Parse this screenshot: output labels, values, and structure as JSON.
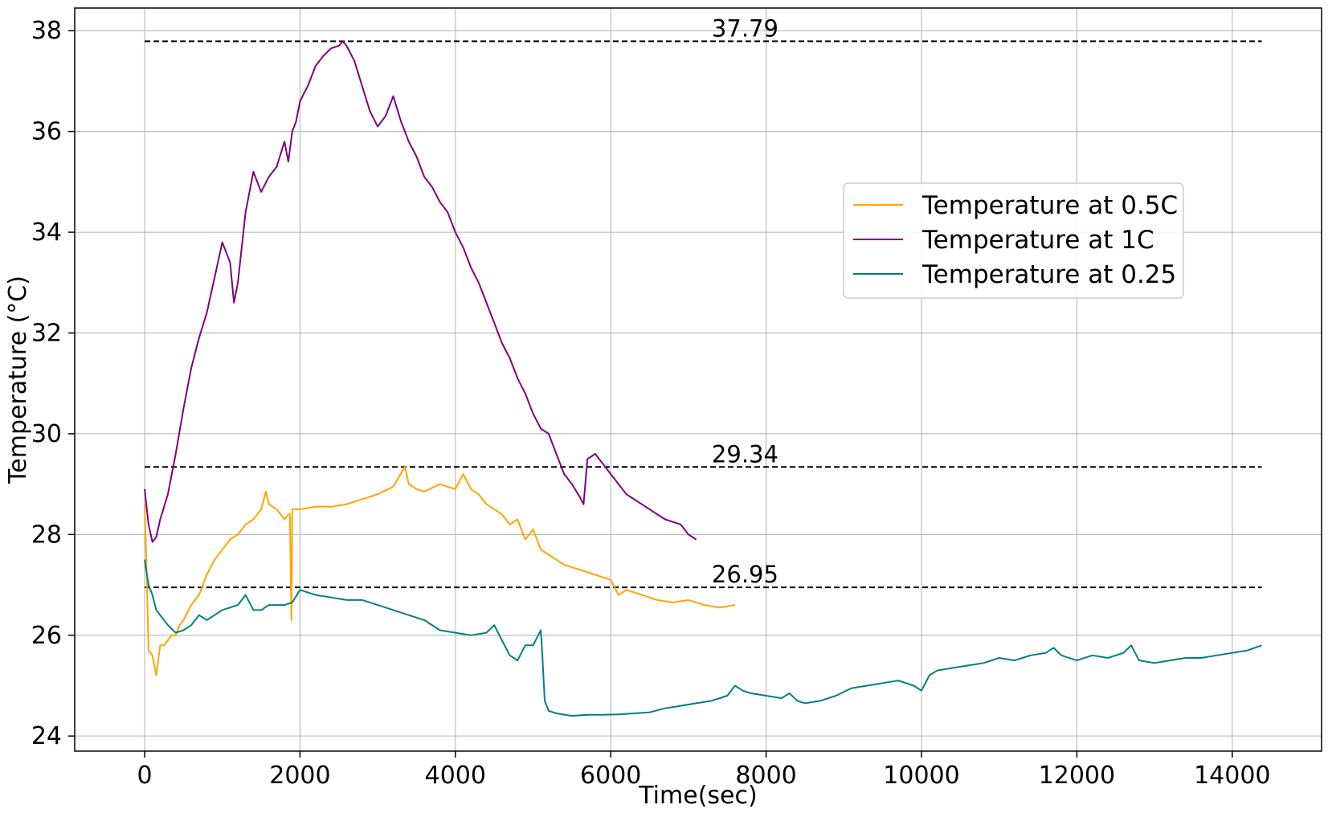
{
  "chart_data": {
    "type": "line",
    "xlabel": "Time(sec)",
    "ylabel": "Temperature (°C)",
    "xlim": [
      -900,
      15150
    ],
    "ylim": [
      23.7,
      38.45
    ],
    "xticks": [
      0,
      2000,
      4000,
      6000,
      8000,
      10000,
      12000,
      14000
    ],
    "yticks": [
      24,
      26,
      28,
      30,
      32,
      34,
      36,
      38
    ],
    "grid": true,
    "legend_position": "upper-right",
    "series": [
      {
        "name": "Temperature at 0.5C",
        "color": "#FFA500",
        "x": [
          0,
          20,
          50,
          100,
          150,
          200,
          250,
          300,
          350,
          400,
          450,
          500,
          600,
          700,
          800,
          900,
          1000,
          1100,
          1200,
          1300,
          1400,
          1500,
          1560,
          1600,
          1700,
          1800,
          1850,
          1870,
          1880,
          1890,
          1900,
          1950,
          2000,
          2200,
          2400,
          2600,
          2800,
          3000,
          3200,
          3350,
          3400,
          3500,
          3600,
          3800,
          4000,
          4100,
          4200,
          4300,
          4400,
          4500,
          4600,
          4700,
          4800,
          4900,
          5000,
          5100,
          5200,
          5400,
          5600,
          5800,
          6000,
          6100,
          6200,
          6400,
          6600,
          6800,
          7000,
          7200,
          7400,
          7600
        ],
        "values": [
          28.6,
          27.6,
          25.7,
          25.6,
          25.2,
          25.8,
          25.8,
          25.9,
          26.0,
          26.0,
          26.2,
          26.3,
          26.6,
          26.8,
          27.2,
          27.5,
          27.7,
          27.9,
          28.0,
          28.2,
          28.3,
          28.5,
          28.85,
          28.6,
          28.5,
          28.3,
          28.4,
          28.4,
          27.2,
          26.3,
          28.5,
          28.5,
          28.5,
          28.55,
          28.55,
          28.6,
          28.7,
          28.8,
          28.95,
          29.35,
          29.0,
          28.9,
          28.85,
          29.0,
          28.9,
          29.2,
          28.9,
          28.8,
          28.6,
          28.5,
          28.4,
          28.2,
          28.3,
          27.9,
          28.1,
          27.7,
          27.6,
          27.4,
          27.3,
          27.2,
          27.1,
          26.8,
          26.9,
          26.8,
          26.7,
          26.65,
          26.7,
          26.6,
          26.55,
          26.6
        ]
      },
      {
        "name": "Temperature at 1C",
        "color": "#800080",
        "x": [
          0,
          50,
          100,
          150,
          200,
          300,
          400,
          500,
          600,
          700,
          800,
          900,
          1000,
          1100,
          1150,
          1200,
          1250,
          1300,
          1400,
          1500,
          1600,
          1700,
          1800,
          1850,
          1900,
          1950,
          2000,
          2100,
          2200,
          2300,
          2400,
          2500,
          2550,
          2600,
          2700,
          2800,
          2900,
          3000,
          3100,
          3200,
          3300,
          3400,
          3500,
          3600,
          3700,
          3800,
          3900,
          4000,
          4100,
          4200,
          4300,
          4400,
          4500,
          4600,
          4700,
          4800,
          4900,
          5000,
          5100,
          5200,
          5300,
          5400,
          5500,
          5600,
          5650,
          5700,
          5800,
          5900,
          6000,
          6100,
          6200,
          6300,
          6400,
          6500,
          6600,
          6700,
          6800,
          6900,
          7000,
          7100
        ],
        "values": [
          28.9,
          28.2,
          27.85,
          27.95,
          28.3,
          28.8,
          29.6,
          30.5,
          31.3,
          31.9,
          32.4,
          33.1,
          33.8,
          33.4,
          32.6,
          33.0,
          33.7,
          34.4,
          35.2,
          34.8,
          35.1,
          35.3,
          35.8,
          35.4,
          36.0,
          36.2,
          36.6,
          36.9,
          37.3,
          37.5,
          37.65,
          37.7,
          37.79,
          37.7,
          37.4,
          36.9,
          36.4,
          36.1,
          36.3,
          36.7,
          36.2,
          35.8,
          35.5,
          35.1,
          34.9,
          34.6,
          34.4,
          34.0,
          33.7,
          33.3,
          33.0,
          32.6,
          32.2,
          31.8,
          31.5,
          31.1,
          30.8,
          30.4,
          30.1,
          30.0,
          29.6,
          29.2,
          29.0,
          28.75,
          28.6,
          29.5,
          29.6,
          29.4,
          29.2,
          29.0,
          28.8,
          28.7,
          28.6,
          28.5,
          28.4,
          28.3,
          28.25,
          28.2,
          28.0,
          27.9
        ]
      },
      {
        "name": "Temperature at 0.25",
        "color": "#008080",
        "x": [
          0,
          50,
          100,
          150,
          200,
          300,
          400,
          500,
          600,
          700,
          800,
          900,
          1000,
          1200,
          1300,
          1400,
          1500,
          1600,
          1800,
          1900,
          2000,
          2200,
          2400,
          2600,
          2800,
          3000,
          3200,
          3400,
          3600,
          3800,
          4000,
          4200,
          4400,
          4500,
          4600,
          4700,
          4800,
          4900,
          5000,
          5100,
          5120,
          5150,
          5200,
          5300,
          5500,
          5700,
          5900,
          6100,
          6300,
          6500,
          6700,
          6900,
          7100,
          7300,
          7500,
          7600,
          7700,
          7800,
          8000,
          8200,
          8300,
          8400,
          8500,
          8700,
          8900,
          9100,
          9300,
          9500,
          9700,
          9900,
          10000,
          10100,
          10200,
          10400,
          10600,
          10800,
          11000,
          11200,
          11400,
          11600,
          11700,
          11800,
          12000,
          12200,
          12400,
          12600,
          12700,
          12800,
          13000,
          13200,
          13400,
          13600,
          13800,
          14000,
          14200,
          14380
        ],
        "values": [
          27.5,
          27.0,
          26.8,
          26.5,
          26.4,
          26.2,
          26.05,
          26.1,
          26.2,
          26.4,
          26.3,
          26.4,
          26.5,
          26.6,
          26.8,
          26.5,
          26.5,
          26.6,
          26.6,
          26.65,
          26.9,
          26.8,
          26.75,
          26.7,
          26.7,
          26.6,
          26.5,
          26.4,
          26.3,
          26.1,
          26.05,
          26.0,
          26.05,
          26.2,
          25.9,
          25.6,
          25.5,
          25.8,
          25.8,
          26.1,
          25.6,
          24.7,
          24.5,
          24.45,
          24.4,
          24.42,
          24.42,
          24.43,
          24.45,
          24.47,
          24.55,
          24.6,
          24.65,
          24.7,
          24.8,
          25.0,
          24.9,
          24.85,
          24.8,
          24.75,
          24.85,
          24.7,
          24.65,
          24.7,
          24.8,
          24.95,
          25.0,
          25.05,
          25.1,
          25.0,
          24.9,
          25.2,
          25.3,
          25.35,
          25.4,
          25.45,
          25.55,
          25.5,
          25.6,
          25.65,
          25.75,
          25.6,
          25.5,
          25.6,
          25.55,
          25.65,
          25.8,
          25.5,
          25.45,
          25.5,
          25.55,
          25.55,
          25.6,
          25.65,
          25.7,
          25.8
        ]
      }
    ],
    "reference_lines": [
      {
        "y": 37.79,
        "label": "37.79",
        "x_from": 0,
        "x_to": 14380
      },
      {
        "y": 29.34,
        "label": "29.34",
        "x_from": 0,
        "x_to": 14380
      },
      {
        "y": 26.95,
        "label": "26.95",
        "x_from": 0,
        "x_to": 14380
      }
    ]
  }
}
